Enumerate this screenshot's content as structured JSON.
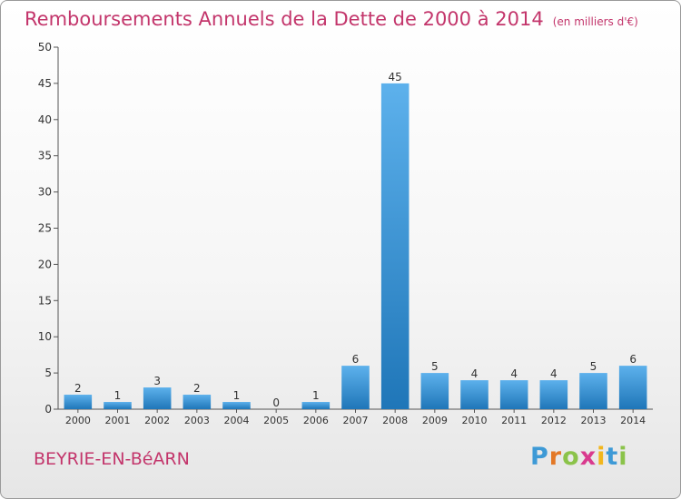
{
  "title": "Remboursements Annuels de la Dette de 2000 à 2014",
  "unit": "(en milliers d'€)",
  "commune": "BEYRIE-EN-BéARN",
  "logo": "Proxiti",
  "colors": {
    "bar": "#3d95db",
    "title": "#c3356b"
  },
  "chart_data": {
    "type": "bar",
    "title": "Remboursements Annuels de la Dette de 2000 à 2014",
    "xlabel": "",
    "ylabel": "",
    "categories": [
      "2000",
      "2001",
      "2002",
      "2003",
      "2004",
      "2005",
      "2006",
      "2007",
      "2008",
      "2009",
      "2010",
      "2011",
      "2012",
      "2013",
      "2014"
    ],
    "values": [
      2,
      1,
      3,
      2,
      1,
      0,
      1,
      6,
      45,
      5,
      4,
      4,
      4,
      5,
      6
    ],
    "ylim": [
      0,
      50
    ],
    "yticks": [
      0,
      5,
      10,
      15,
      20,
      25,
      30,
      35,
      40,
      45,
      50
    ],
    "grid": false,
    "legend": "none"
  }
}
